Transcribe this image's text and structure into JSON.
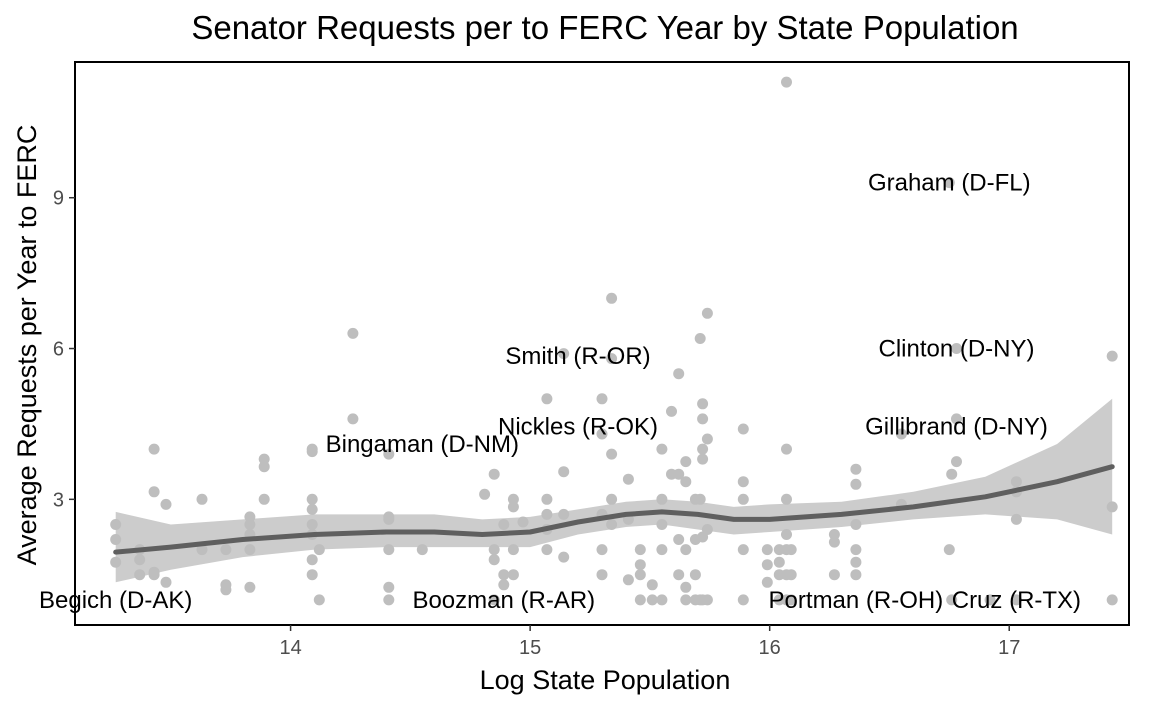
{
  "chart_data": {
    "type": "scatter",
    "title": "Senator Requests per to FERC Year by State Population",
    "xlabel": "Log State Population",
    "ylabel": "Average Requests per Year to FERC",
    "xlim": [
      13.1,
      17.5
    ],
    "ylim": [
      0.5,
      11.7
    ],
    "xticks": [
      14,
      15,
      16,
      17
    ],
    "yticks": [
      3,
      6,
      9
    ],
    "grid": false,
    "colors": {
      "points": "#bebebe",
      "smooth_line": "#5f5f5f",
      "confidence_band": "#cccccc",
      "axis": "#000000",
      "tick_text": "#4d4d4d"
    },
    "points": [
      [
        13.27,
        2.5
      ],
      [
        13.27,
        2.2
      ],
      [
        13.27,
        1.75
      ],
      [
        13.37,
        2.0
      ],
      [
        13.37,
        1.8
      ],
      [
        13.37,
        1.5
      ],
      [
        13.43,
        1.55
      ],
      [
        13.43,
        1.5
      ],
      [
        13.43,
        4.0
      ],
      [
        13.43,
        3.15
      ],
      [
        13.48,
        2.9
      ],
      [
        13.48,
        1.35
      ],
      [
        13.63,
        3.0
      ],
      [
        13.63,
        2.0
      ],
      [
        13.73,
        2.0
      ],
      [
        13.73,
        1.3
      ],
      [
        13.73,
        1.2
      ],
      [
        13.83,
        2.65
      ],
      [
        13.83,
        2.5
      ],
      [
        13.83,
        2.3
      ],
      [
        13.83,
        2.0
      ],
      [
        13.83,
        1.25
      ],
      [
        13.89,
        3.8
      ],
      [
        13.89,
        3.65
      ],
      [
        13.89,
        3.0
      ],
      [
        14.09,
        4.0
      ],
      [
        14.09,
        3.95
      ],
      [
        14.09,
        3.0
      ],
      [
        14.09,
        2.8
      ],
      [
        14.09,
        2.5
      ],
      [
        14.09,
        2.3
      ],
      [
        14.09,
        1.8
      ],
      [
        14.09,
        1.5
      ],
      [
        14.12,
        2.0
      ],
      [
        14.12,
        1.0
      ],
      [
        14.26,
        6.3
      ],
      [
        14.26,
        4.6
      ],
      [
        14.41,
        3.9
      ],
      [
        14.41,
        2.65
      ],
      [
        14.41,
        2.6
      ],
      [
        14.41,
        2.0
      ],
      [
        14.41,
        1.25
      ],
      [
        14.41,
        1.0
      ],
      [
        14.55,
        2.0
      ],
      [
        14.81,
        3.1
      ],
      [
        14.85,
        3.5
      ],
      [
        14.85,
        2.0
      ],
      [
        14.85,
        1.8
      ],
      [
        14.85,
        1.0
      ],
      [
        14.89,
        2.5
      ],
      [
        14.89,
        1.5
      ],
      [
        14.89,
        1.3
      ],
      [
        14.93,
        3.0
      ],
      [
        14.93,
        2.85
      ],
      [
        14.93,
        2.0
      ],
      [
        14.93,
        1.5
      ],
      [
        14.97,
        2.55
      ],
      [
        15.07,
        5.0
      ],
      [
        15.07,
        3.0
      ],
      [
        15.07,
        2.7
      ],
      [
        15.07,
        2.4
      ],
      [
        15.07,
        2.0
      ],
      [
        15.14,
        5.9
      ],
      [
        15.14,
        3.55
      ],
      [
        15.14,
        2.7
      ],
      [
        15.14,
        1.85
      ],
      [
        15.3,
        5.0
      ],
      [
        15.3,
        4.3
      ],
      [
        15.3,
        2.7
      ],
      [
        15.3,
        2.0
      ],
      [
        15.3,
        1.5
      ],
      [
        15.34,
        7.0
      ],
      [
        15.34,
        5.8
      ],
      [
        15.34,
        3.9
      ],
      [
        15.34,
        3.0
      ],
      [
        15.34,
        2.5
      ],
      [
        15.41,
        3.4
      ],
      [
        15.41,
        2.6
      ],
      [
        15.41,
        1.4
      ],
      [
        15.46,
        2.0
      ],
      [
        15.46,
        1.7
      ],
      [
        15.46,
        1.5
      ],
      [
        15.46,
        1.0
      ],
      [
        15.51,
        1.3
      ],
      [
        15.51,
        1.0
      ],
      [
        15.55,
        4.0
      ],
      [
        15.55,
        3.0
      ],
      [
        15.55,
        2.5
      ],
      [
        15.55,
        2.0
      ],
      [
        15.55,
        1.0
      ],
      [
        15.59,
        4.75
      ],
      [
        15.59,
        3.5
      ],
      [
        15.62,
        5.5
      ],
      [
        15.62,
        3.5
      ],
      [
        15.62,
        2.2
      ],
      [
        15.62,
        1.5
      ],
      [
        15.65,
        3.75
      ],
      [
        15.65,
        3.35
      ],
      [
        15.65,
        2.0
      ],
      [
        15.65,
        1.25
      ],
      [
        15.65,
        1.0
      ],
      [
        15.69,
        3.0
      ],
      [
        15.69,
        2.2
      ],
      [
        15.69,
        1.5
      ],
      [
        15.69,
        1.0
      ],
      [
        15.71,
        6.2
      ],
      [
        15.71,
        3.0
      ],
      [
        15.71,
        1.0
      ],
      [
        15.72,
        4.9
      ],
      [
        15.72,
        4.6
      ],
      [
        15.72,
        4.0
      ],
      [
        15.72,
        3.8
      ],
      [
        15.72,
        2.25
      ],
      [
        15.72,
        1.0
      ],
      [
        15.74,
        6.7
      ],
      [
        15.74,
        4.2
      ],
      [
        15.74,
        2.4
      ],
      [
        15.74,
        1.0
      ],
      [
        15.89,
        4.4
      ],
      [
        15.89,
        3.35
      ],
      [
        15.89,
        3.0
      ],
      [
        15.89,
        2.0
      ],
      [
        15.89,
        1.0
      ],
      [
        15.99,
        2.0
      ],
      [
        15.99,
        1.7
      ],
      [
        15.99,
        1.35
      ],
      [
        16.04,
        2.0
      ],
      [
        16.04,
        1.75
      ],
      [
        16.04,
        1.5
      ],
      [
        16.04,
        1.0
      ],
      [
        16.07,
        11.3
      ],
      [
        16.07,
        4.0
      ],
      [
        16.07,
        3.0
      ],
      [
        16.07,
        2.3
      ],
      [
        16.07,
        2.0
      ],
      [
        16.07,
        1.5
      ],
      [
        16.07,
        1.0
      ],
      [
        16.09,
        2.0
      ],
      [
        16.09,
        1.5
      ],
      [
        16.09,
        1.0
      ],
      [
        16.27,
        2.3
      ],
      [
        16.27,
        2.15
      ],
      [
        16.27,
        1.5
      ],
      [
        16.36,
        3.6
      ],
      [
        16.36,
        3.3
      ],
      [
        16.36,
        2.5
      ],
      [
        16.36,
        2.0
      ],
      [
        16.36,
        1.75
      ],
      [
        16.36,
        1.5
      ],
      [
        16.55,
        4.3
      ],
      [
        16.55,
        2.9
      ],
      [
        16.75,
        9.3
      ],
      [
        16.75,
        2.0
      ],
      [
        16.76,
        3.5
      ],
      [
        16.76,
        1.0
      ],
      [
        16.78,
        6.0
      ],
      [
        16.78,
        4.6
      ],
      [
        16.78,
        3.75
      ],
      [
        16.92,
        1.0
      ],
      [
        17.03,
        3.35
      ],
      [
        17.03,
        3.15
      ],
      [
        17.03,
        2.6
      ],
      [
        17.03,
        1.0
      ],
      [
        17.43,
        5.85
      ],
      [
        17.43,
        2.85
      ],
      [
        17.43,
        1.0
      ]
    ],
    "smooth_line": [
      [
        13.27,
        1.95
      ],
      [
        13.5,
        2.05
      ],
      [
        13.8,
        2.2
      ],
      [
        14.1,
        2.3
      ],
      [
        14.4,
        2.35
      ],
      [
        14.6,
        2.35
      ],
      [
        14.8,
        2.3
      ],
      [
        15.0,
        2.35
      ],
      [
        15.2,
        2.55
      ],
      [
        15.4,
        2.7
      ],
      [
        15.55,
        2.75
      ],
      [
        15.7,
        2.7
      ],
      [
        15.85,
        2.6
      ],
      [
        16.0,
        2.6
      ],
      [
        16.3,
        2.7
      ],
      [
        16.6,
        2.85
      ],
      [
        16.9,
        3.05
      ],
      [
        17.2,
        3.35
      ],
      [
        17.43,
        3.65
      ]
    ],
    "confidence_band": [
      [
        13.27,
        1.35,
        2.75
      ],
      [
        13.5,
        1.6,
        2.5
      ],
      [
        13.8,
        1.85,
        2.6
      ],
      [
        14.1,
        2.0,
        2.7
      ],
      [
        14.4,
        2.05,
        2.7
      ],
      [
        14.6,
        2.05,
        2.7
      ],
      [
        14.8,
        2.05,
        2.6
      ],
      [
        15.0,
        2.05,
        2.65
      ],
      [
        15.2,
        2.3,
        2.8
      ],
      [
        15.4,
        2.45,
        2.95
      ],
      [
        15.55,
        2.5,
        3.0
      ],
      [
        15.7,
        2.4,
        2.95
      ],
      [
        15.85,
        2.3,
        2.85
      ],
      [
        16.0,
        2.35,
        2.9
      ],
      [
        16.3,
        2.45,
        2.95
      ],
      [
        16.6,
        2.6,
        3.15
      ],
      [
        16.9,
        2.7,
        3.45
      ],
      [
        17.2,
        2.6,
        4.1
      ],
      [
        17.43,
        2.3,
        5.0
      ]
    ],
    "annotations": [
      {
        "text": "Begich (D-AK)",
        "x": 13.27,
        "y": 1.0
      },
      {
        "text": "Boozman (R-AR)",
        "x": 14.89,
        "y": 1.0
      },
      {
        "text": "Portman (R-OH)",
        "x": 16.36,
        "y": 1.0
      },
      {
        "text": "Cruz (R-TX)",
        "x": 17.03,
        "y": 1.0
      },
      {
        "text": "Bingaman (D-NM)",
        "x": 14.55,
        "y": 4.1
      },
      {
        "text": "Nickles (R-OK)",
        "x": 15.2,
        "y": 4.45
      },
      {
        "text": "Smith (R-OR)",
        "x": 15.2,
        "y": 5.85
      },
      {
        "text": "Graham (D-FL)",
        "x": 16.75,
        "y": 9.3
      },
      {
        "text": "Clinton (D-NY)",
        "x": 16.78,
        "y": 6.0
      },
      {
        "text": "Gillibrand (D-NY)",
        "x": 16.78,
        "y": 4.45
      }
    ]
  }
}
